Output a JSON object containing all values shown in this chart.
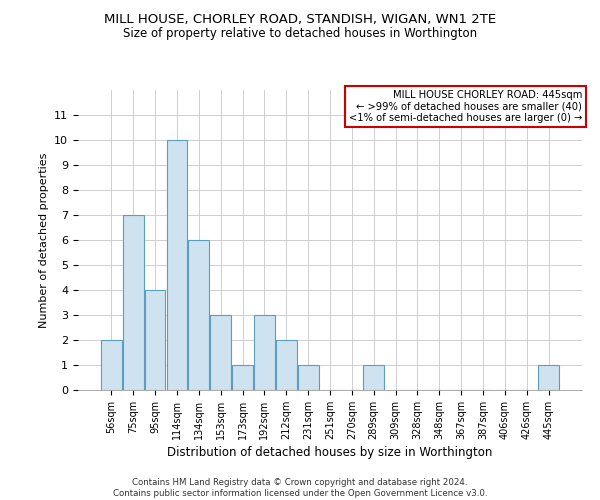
{
  "title": "MILL HOUSE, CHORLEY ROAD, STANDISH, WIGAN, WN1 2TE",
  "subtitle": "Size of property relative to detached houses in Worthington",
  "xlabel": "Distribution of detached houses by size in Worthington",
  "ylabel": "Number of detached properties",
  "categories": [
    "56sqm",
    "75sqm",
    "95sqm",
    "114sqm",
    "134sqm",
    "153sqm",
    "173sqm",
    "192sqm",
    "212sqm",
    "231sqm",
    "251sqm",
    "270sqm",
    "289sqm",
    "309sqm",
    "328sqm",
    "348sqm",
    "367sqm",
    "387sqm",
    "406sqm",
    "426sqm",
    "445sqm"
  ],
  "values": [
    2,
    7,
    4,
    10,
    6,
    3,
    1,
    3,
    2,
    1,
    0,
    0,
    1,
    0,
    0,
    0,
    0,
    0,
    0,
    0,
    1
  ],
  "bar_color": "#cfe2f0",
  "bar_edge_color": "#5a9fc0",
  "ylim": [
    0,
    12
  ],
  "yticks": [
    0,
    1,
    2,
    3,
    4,
    5,
    6,
    7,
    8,
    9,
    10,
    11
  ],
  "annotation_line1": "MILL HOUSE CHORLEY ROAD: 445sqm",
  "annotation_line2": "← >99% of detached houses are smaller (40)",
  "annotation_line3": "<1% of semi-detached houses are larger (0) →",
  "annotation_box_color": "#cc0000",
  "footer_line1": "Contains HM Land Registry data © Crown copyright and database right 2024.",
  "footer_line2": "Contains public sector information licensed under the Open Government Licence v3.0.",
  "background_color": "#ffffff",
  "grid_color": "#c8c8c8"
}
